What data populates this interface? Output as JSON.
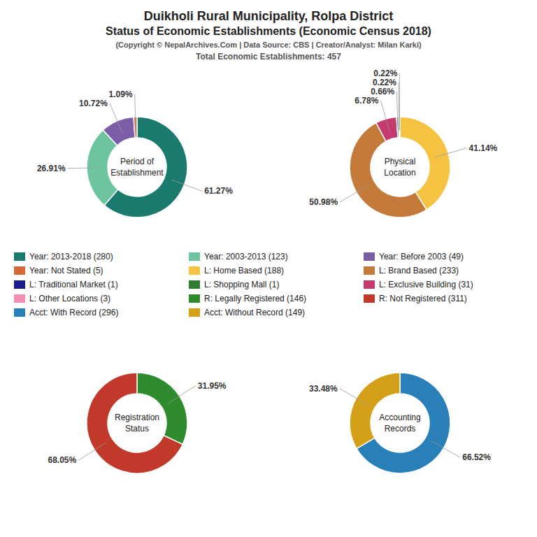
{
  "title": [
    "Duikholi Rural Municipality, Rolpa District",
    "Status of Economic Establishments (Economic Census 2018)"
  ],
  "subtitle": [
    "(Copyright © NepalArchives.Com | Data Source: CBS | Creator/Analyst: Milan Karki)",
    "Total Economic Establishments: 457"
  ],
  "legend_entries": [
    {
      "name": "Year: 2013-2018 (280)",
      "color": "#1a7a6e"
    },
    {
      "name": "Year: 2003-2013 (123)",
      "color": "#6dc5a0"
    },
    {
      "name": "Year: Before 2003 (49)",
      "color": "#7b5ea7"
    },
    {
      "name": "Year: Not Stated (5)",
      "color": "#d4683a"
    },
    {
      "name": "L: Home Based (188)",
      "color": "#f5c242"
    },
    {
      "name": "L: Brand Based (233)",
      "color": "#c47a3a"
    },
    {
      "name": "L: Traditional Market (1)",
      "color": "#1c1c8c"
    },
    {
      "name": "L: Shopping Mall (1)",
      "color": "#2e7d32"
    },
    {
      "name": "L: Exclusive Building (31)",
      "color": "#c43a6e"
    },
    {
      "name": "L: Other Locations (3)",
      "color": "#f48fb1"
    },
    {
      "name": "R: Legally Registered (146)",
      "color": "#2e8b2e"
    },
    {
      "name": "R: Not Registered (311)",
      "color": "#c0392b"
    },
    {
      "name": "Acct: With Record (296)",
      "color": "#2980b9"
    },
    {
      "name": "Acct: Without Record (149)",
      "color": "#d4a017"
    }
  ],
  "chart_data": [
    {
      "type": "pie",
      "title": "Period of\nEstablishment",
      "values": [
        61.27,
        26.91,
        10.72,
        1.09
      ],
      "colors": [
        "#1a7a6e",
        "#6dc5a0",
        "#7b5ea7",
        "#d4683a"
      ],
      "value_labels": [
        "61.27%",
        "26.91%",
        "10.72%",
        "1.09%"
      ],
      "data_labels": true
    },
    {
      "type": "pie",
      "title": "Physical\nLocation",
      "values": [
        41.14,
        50.98,
        6.78,
        0.66,
        0.22,
        0.22
      ],
      "colors": [
        "#f5c242",
        "#c47a3a",
        "#c43a6e",
        "#1a7a6e",
        "#2e7d32",
        "#d4683a"
      ],
      "value_labels": [
        "41.14%",
        "50.98%",
        "6.78%",
        "0.66%",
        "0.22%",
        "0.22%"
      ],
      "data_labels": true
    },
    {
      "type": "pie",
      "title": "Registration\nStatus",
      "values": [
        31.95,
        68.05
      ],
      "colors": [
        "#2e8b2e",
        "#c0392b"
      ],
      "value_labels": [
        "31.95%",
        "68.05%"
      ],
      "data_labels": true
    },
    {
      "type": "pie",
      "title": "Accounting\nRecords",
      "values": [
        66.52,
        33.48
      ],
      "colors": [
        "#2980b9",
        "#d4a017"
      ],
      "value_labels": [
        "66.52%",
        "33.48%"
      ],
      "data_labels": true
    }
  ]
}
